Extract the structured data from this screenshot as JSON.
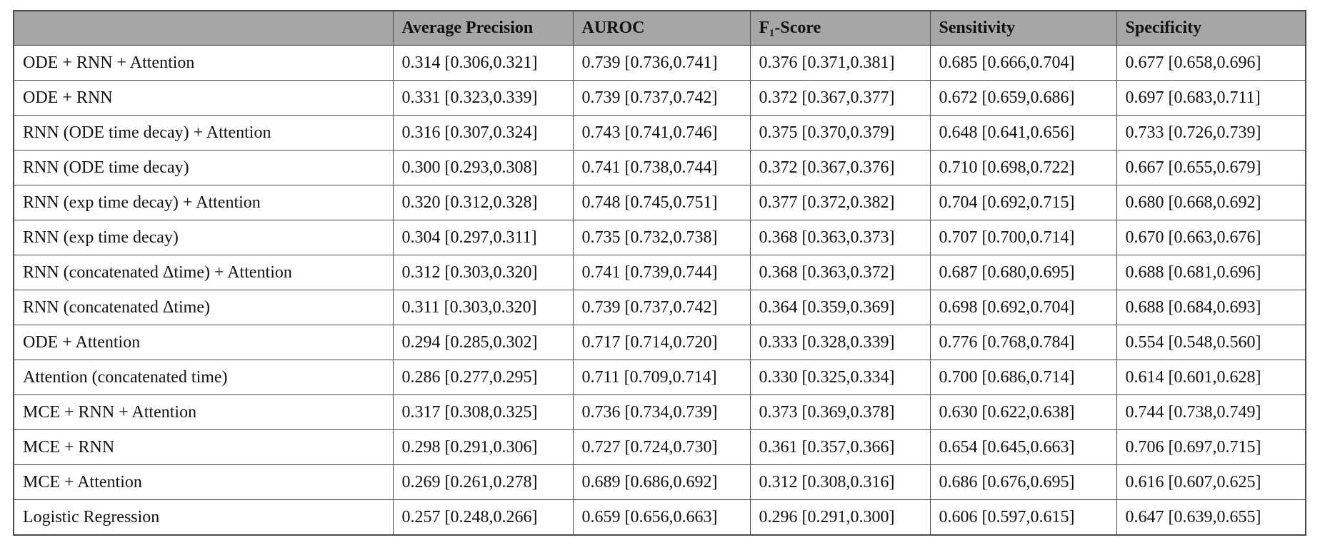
{
  "table": {
    "columns": [
      "Average Precision",
      "AUROC",
      "F₁-Score",
      "Sensitivity",
      "Specificity"
    ],
    "rows": [
      [
        "ODE + RNN + Attention",
        "0.314 [0.306,0.321]",
        "0.739 [0.736,0.741]",
        "0.376 [0.371,0.381]",
        "0.685 [0.666,0.704]",
        "0.677 [0.658,0.696]"
      ],
      [
        "ODE + RNN",
        "0.331 [0.323,0.339]",
        "0.739 [0.737,0.742]",
        "0.372 [0.367,0.377]",
        "0.672 [0.659,0.686]",
        "0.697 [0.683,0.711]"
      ],
      [
        "RNN (ODE time decay) + Attention",
        "0.316 [0.307,0.324]",
        "0.743 [0.741,0.746]",
        "0.375 [0.370,0.379]",
        "0.648 [0.641,0.656]",
        "0.733 [0.726,0.739]"
      ],
      [
        "RNN (ODE time decay)",
        "0.300 [0.293,0.308]",
        "0.741 [0.738,0.744]",
        "0.372 [0.367,0.376]",
        "0.710 [0.698,0.722]",
        "0.667 [0.655,0.679]"
      ],
      [
        "RNN (exp time decay) + Attention",
        "0.320 [0.312,0.328]",
        "0.748 [0.745,0.751]",
        "0.377 [0.372,0.382]",
        "0.704 [0.692,0.715]",
        "0.680 [0.668,0.692]"
      ],
      [
        "RNN (exp time decay)",
        "0.304 [0.297,0.311]",
        "0.735 [0.732,0.738]",
        "0.368 [0.363,0.373]",
        "0.707 [0.700,0.714]",
        "0.670 [0.663,0.676]"
      ],
      [
        "RNN (concatenated Δtime) + Attention",
        "0.312 [0.303,0.320]",
        "0.741 [0.739,0.744]",
        "0.368 [0.363,0.372]",
        "0.687 [0.680,0.695]",
        "0.688 [0.681,0.696]"
      ],
      [
        "RNN (concatenated Δtime)",
        "0.311 [0.303,0.320]",
        "0.739 [0.737,0.742]",
        "0.364 [0.359,0.369]",
        "0.698 [0.692,0.704]",
        "0.688 [0.684,0.693]"
      ],
      [
        "ODE + Attention",
        "0.294 [0.285,0.302]",
        "0.717 [0.714,0.720]",
        "0.333 [0.328,0.339]",
        "0.776 [0.768,0.784]",
        "0.554 [0.548,0.560]"
      ],
      [
        "Attention (concatenated time)",
        "0.286 [0.277,0.295]",
        "0.711 [0.709,0.714]",
        "0.330 [0.325,0.334]",
        "0.700 [0.686,0.714]",
        "0.614 [0.601,0.628]"
      ],
      [
        "MCE + RNN + Attention",
        "0.317 [0.308,0.325]",
        "0.736 [0.734,0.739]",
        "0.373 [0.369,0.378]",
        "0.630 [0.622,0.638]",
        "0.744 [0.738,0.749]"
      ],
      [
        "MCE + RNN",
        "0.298 [0.291,0.306]",
        "0.727 [0.724,0.730]",
        "0.361 [0.357,0.366]",
        "0.654 [0.645,0.663]",
        "0.706 [0.697,0.715]"
      ],
      [
        "MCE + Attention",
        "0.269 [0.261,0.278]",
        "0.689 [0.686,0.692]",
        "0.312 [0.308,0.316]",
        "0.686 [0.676,0.695]",
        "0.616 [0.607,0.625]"
      ],
      [
        "Logistic Regression",
        "0.257 [0.248,0.266]",
        "0.659 [0.656,0.663]",
        "0.296 [0.291,0.300]",
        "0.606 [0.597,0.615]",
        "0.647 [0.639,0.655]"
      ]
    ]
  }
}
